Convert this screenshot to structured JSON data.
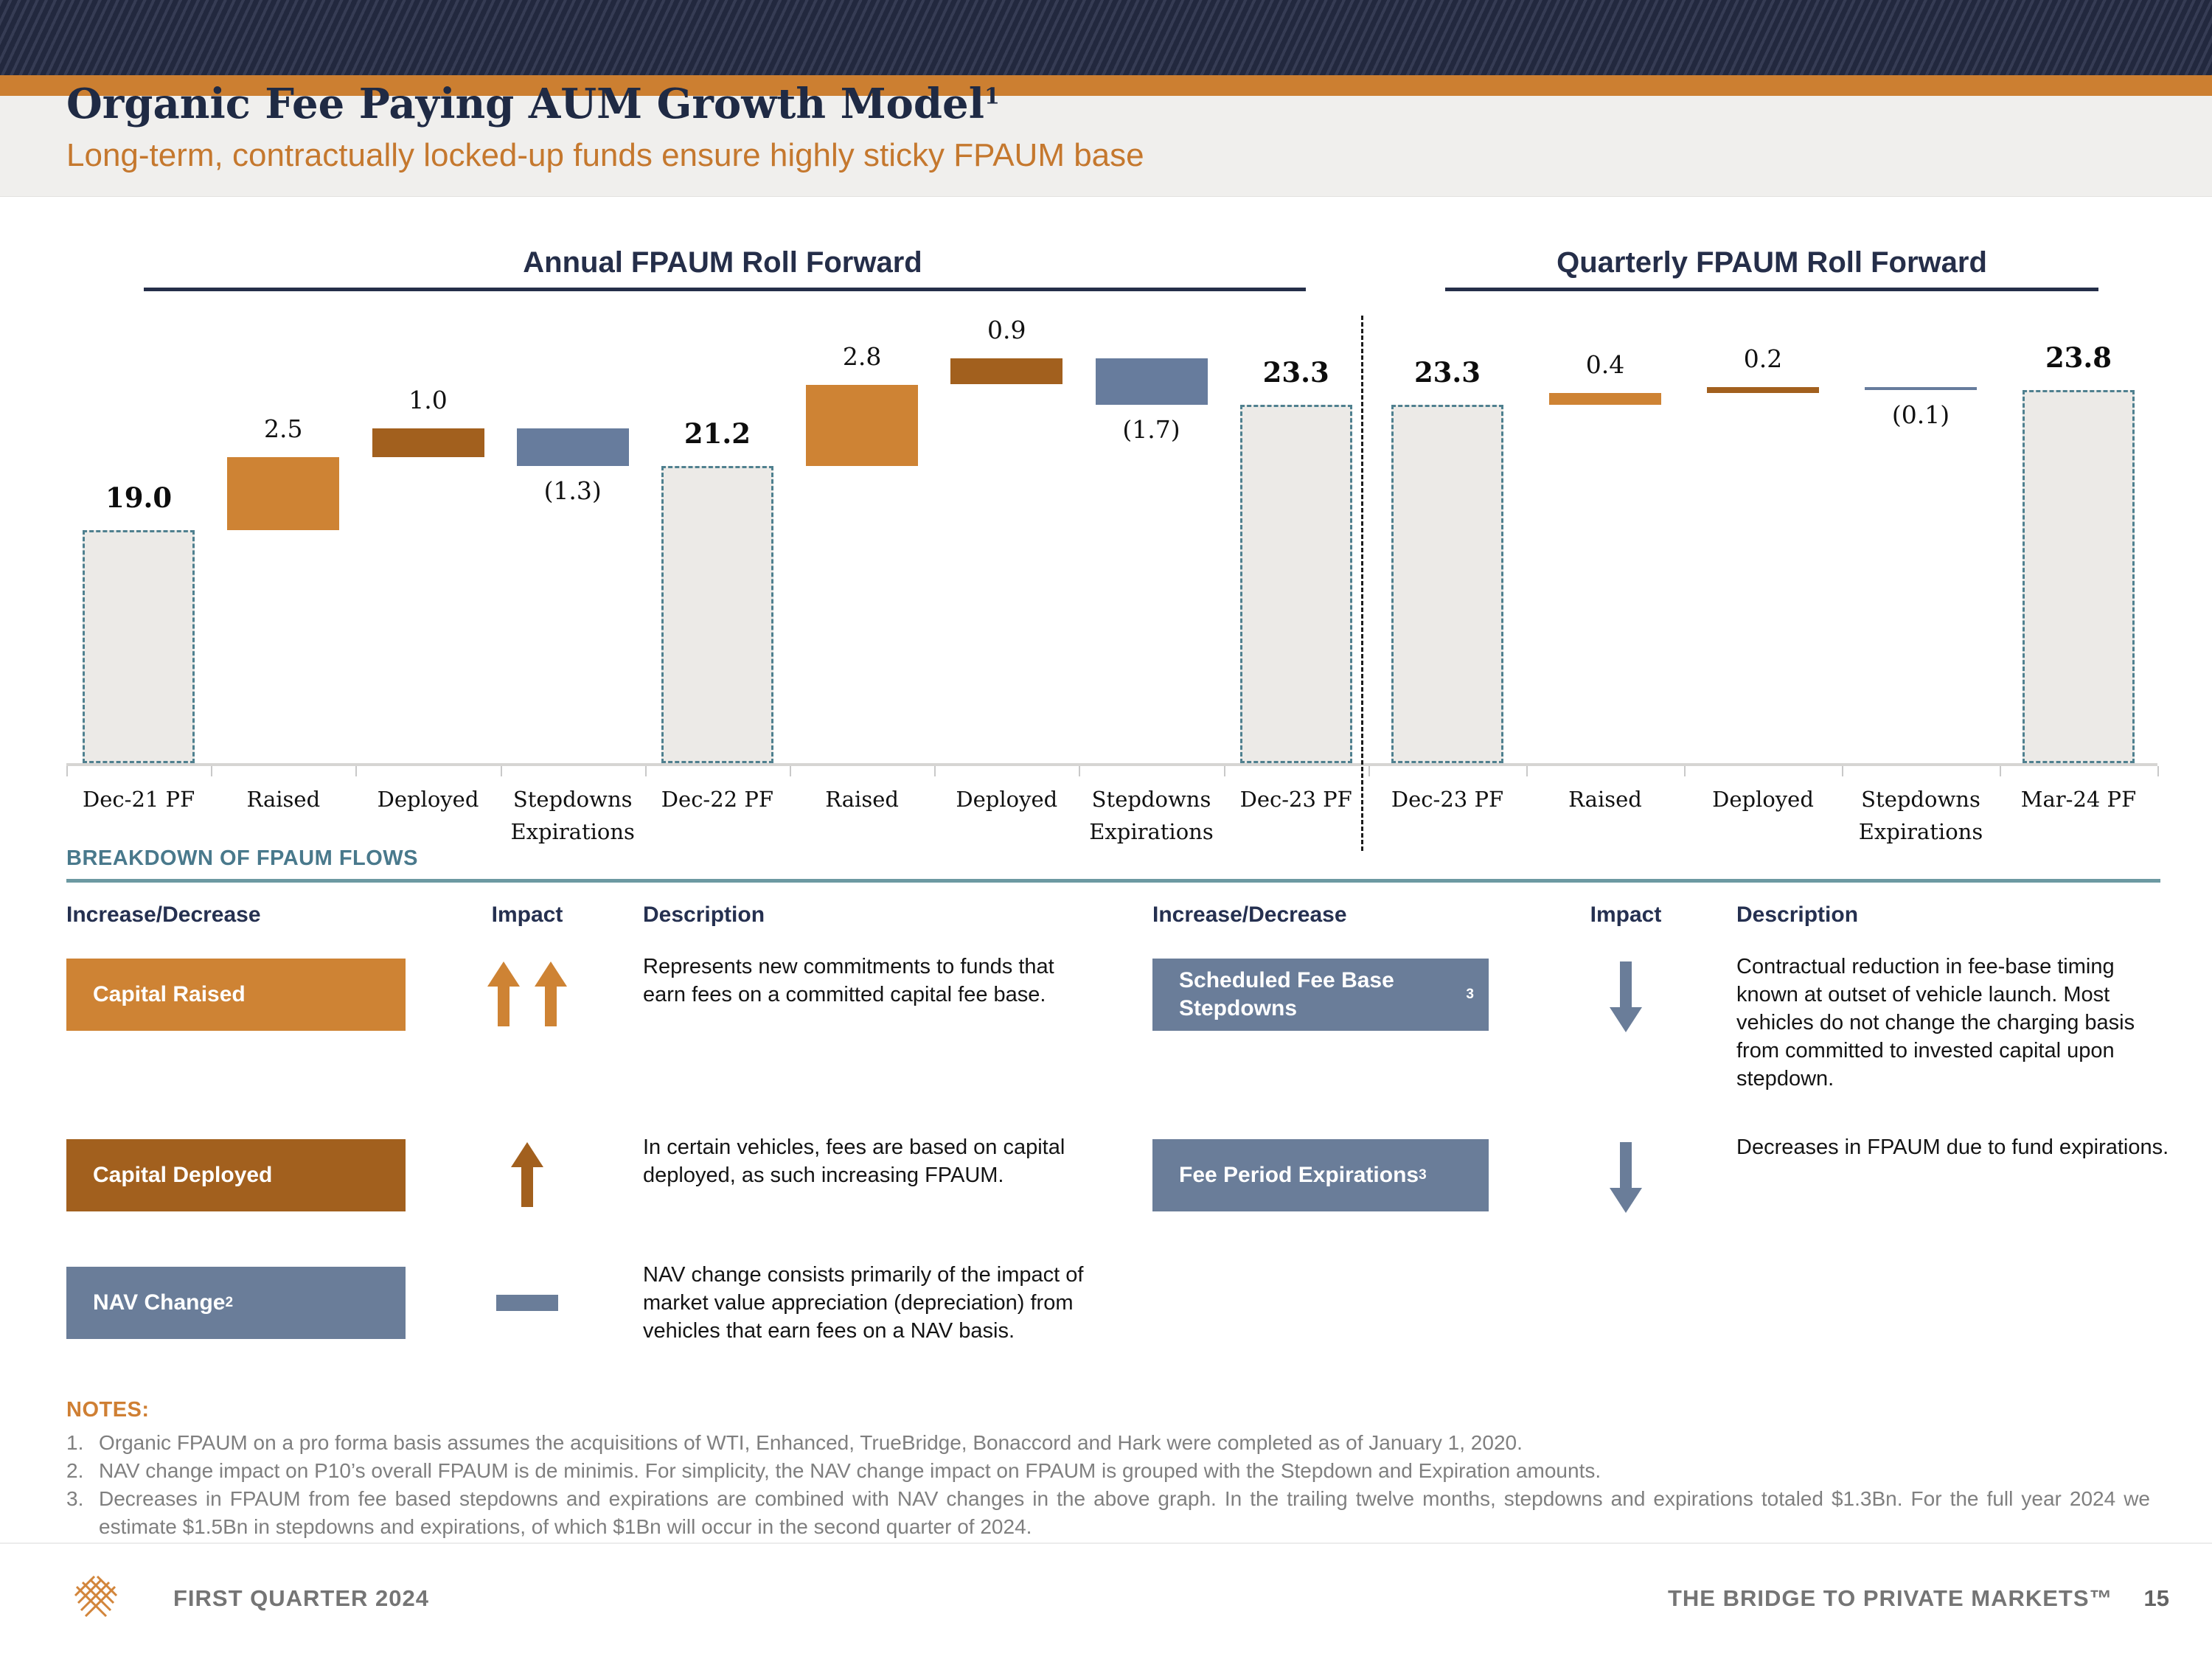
{
  "header": {
    "title": "Organic Fee Paying AUM Growth Model",
    "title_sup": "1",
    "subtitle": "Long-term, contractually locked-up funds ensure highly sticky FPAUM base"
  },
  "chart_data": [
    {
      "type": "waterfall",
      "title": "Annual FPAUM Roll Forward",
      "unit": "$Bn",
      "ylim": [
        11,
        25.5
      ],
      "grid": false,
      "categories": [
        "Dec-21 PF",
        "Raised",
        "Deployed",
        "Stepdowns\nExpirations",
        "Dec-22 PF",
        "Raised",
        "Deployed",
        "Stepdowns\nExpirations",
        "Dec-23 PF"
      ],
      "bars": [
        {
          "cat": "Dec-21 PF",
          "kind": "total",
          "value": 19.0,
          "label": "19.0"
        },
        {
          "cat": "Raised",
          "kind": "raised",
          "from": 19.0,
          "to": 21.5,
          "value": 2.5,
          "label": "2.5"
        },
        {
          "cat": "Deployed",
          "kind": "deployed",
          "from": 21.5,
          "to": 22.5,
          "value": 1.0,
          "label": "1.0"
        },
        {
          "cat": "Stepdowns\nExpirations",
          "kind": "stepdown",
          "from": 22.5,
          "to": 21.2,
          "value": -1.3,
          "label": "(1.3)"
        },
        {
          "cat": "Dec-22 PF",
          "kind": "total",
          "value": 21.2,
          "label": "21.2"
        },
        {
          "cat": "Raised",
          "kind": "raised",
          "from": 21.2,
          "to": 24.0,
          "value": 2.8,
          "label": "2.8"
        },
        {
          "cat": "Deployed",
          "kind": "deployed",
          "from": 24.0,
          "to": 24.9,
          "value": 0.9,
          "label": "0.9"
        },
        {
          "cat": "Stepdowns\nExpirations",
          "kind": "stepdown",
          "from": 24.9,
          "to": 23.3,
          "value": -1.7,
          "label": "(1.7)"
        },
        {
          "cat": "Dec-23 PF",
          "kind": "total",
          "value": 23.3,
          "label": "23.3"
        }
      ]
    },
    {
      "type": "waterfall",
      "title": "Quarterly FPAUM Roll Forward",
      "unit": "$Bn",
      "ylim": [
        11,
        25.5
      ],
      "grid": false,
      "categories": [
        "Dec-23 PF",
        "Raised",
        "Deployed",
        "Stepdowns\nExpirations",
        "Mar-24 PF"
      ],
      "bars": [
        {
          "cat": "Dec-23 PF",
          "kind": "total",
          "value": 23.3,
          "label": "23.3"
        },
        {
          "cat": "Raised",
          "kind": "raised",
          "from": 23.3,
          "to": 23.7,
          "value": 0.4,
          "label": "0.4"
        },
        {
          "cat": "Deployed",
          "kind": "deployed",
          "from": 23.7,
          "to": 23.9,
          "value": 0.2,
          "label": "0.2"
        },
        {
          "cat": "Stepdowns\nExpirations",
          "kind": "stepdown",
          "from": 23.9,
          "to": 23.8,
          "value": -0.1,
          "label": "(0.1)"
        },
        {
          "cat": "Mar-24 PF",
          "kind": "total",
          "value": 23.8,
          "label": "23.8"
        }
      ]
    }
  ],
  "breakdown": {
    "heading": "BREAKDOWN OF FPAUM FLOWS",
    "columns": {
      "increase": "Increase/Decrease",
      "impact": "Impact",
      "description": "Description"
    },
    "left_rows": [
      {
        "label": "Capital Raised",
        "sup": "",
        "color": "#ce8334",
        "impact": "up-up",
        "impact_color": "#ce8334",
        "desc": "Represents new commitments to funds that earn fees on a committed capital fee base."
      },
      {
        "label": "Capital Deployed",
        "sup": "",
        "color": "#a2601e",
        "impact": "up",
        "impact_color": "#a2601e",
        "desc": "In certain vehicles, fees are based on capital deployed, as such increasing FPAUM."
      },
      {
        "label": "NAV Change",
        "sup": "2",
        "color": "#6a7d99",
        "impact": "flat",
        "impact_color": "#6a7d99",
        "desc": "NAV change consists primarily of the impact of market value appreciation (depreciation) from vehicles that earn fees on a NAV basis."
      }
    ],
    "right_rows": [
      {
        "label": "Scheduled Fee Base Stepdowns",
        "sup": "3",
        "color": "#6a7d99",
        "impact": "down",
        "impact_color": "#6a7d99",
        "desc": "Contractual reduction in fee-base timing known at outset of vehicle launch. Most vehicles do not change the charging basis from committed to invested capital upon stepdown."
      },
      {
        "label": "Fee Period Expirations",
        "sup": "3",
        "color": "#6a7d99",
        "impact": "down",
        "impact_color": "#6a7d99",
        "desc": "Decreases in FPAUM due to fund expirations."
      }
    ]
  },
  "notes": {
    "heading": "NOTES:",
    "items": [
      {
        "num": "1.",
        "text": "Organic FPAUM on a pro forma basis assumes the acquisitions of WTI, Enhanced, TrueBridge, Bonaccord and Hark were completed as of January 1, 2020."
      },
      {
        "num": "2.",
        "text": "NAV change impact on P10’s overall FPAUM is de minimis. For simplicity, the NAV change impact on FPAUM is grouped with the Stepdown and Expiration amounts."
      },
      {
        "num": "3.",
        "text": "Decreases in FPAUM from fee based stepdowns and expirations are combined with NAV changes in the above graph. In the trailing twelve months, stepdowns and expirations totaled $1.3Bn. For the full year 2024 we estimate $1.5Bn in stepdowns and expirations, of which $1Bn will occur in the second quarter of 2024."
      }
    ]
  },
  "footer": {
    "quarter": "FIRST QUARTER 2024",
    "tagline": "THE BRIDGE TO PRIVATE MARKETS™",
    "page_number": "15"
  },
  "colors": {
    "accent_orange": "#ce8334",
    "deployed_brown": "#a2601e",
    "slate_blue": "#677c9d",
    "dashed_border": "#4f808f",
    "total_fill": "#eceae7",
    "navy": "#252e49",
    "teal_heading": "#49798c",
    "notes_gray": "#7f7f7f"
  }
}
